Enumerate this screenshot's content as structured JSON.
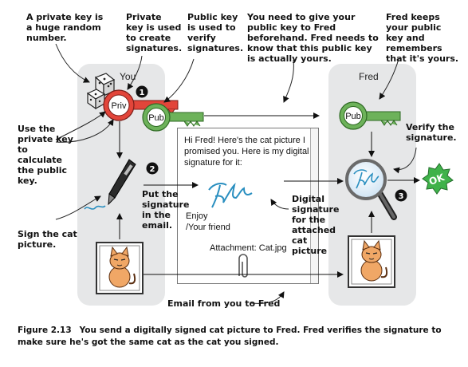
{
  "annotations": {
    "private_key_random": "A private key is a huge random number.",
    "private_key_signatures": "Private key is used to create signatures.",
    "public_key_verify": "Public key is used to verify signatures.",
    "give_public_key": "You need to give your public key to Fred beforehand. Fred needs to know that this public key is actually yours.",
    "fred_keeps_key": "Fred keeps your public key and remembers that it's yours.",
    "use_private_key": "Use the private key to calculate the public key.",
    "verify_signature": "Verify the signature.",
    "put_signature": "Put the signature in the email.",
    "digital_signature": "Digital signature for the attached cat picture",
    "sign_cat_picture": "Sign the cat picture.",
    "email_from_you": "Email from you to Fred"
  },
  "panels": {
    "you": "You",
    "fred": "Fred"
  },
  "keys": {
    "priv": "Priv",
    "pub_you": "Pub",
    "pub_fred": "Pub"
  },
  "steps": {
    "step1": "1",
    "step2": "2",
    "step3": "3"
  },
  "email": {
    "body": "Hi Fred! Here's the cat picture I promised you. Here is my digital signature for it:",
    "closing": "Enjoy",
    "sign_off": "/Your friend",
    "attachment": "Attachment: Cat.jpg"
  },
  "ok_badge": "OK",
  "caption": {
    "figure": "Figure 2.13",
    "text": "You send a digitally signed cat picture to Fred. Fred verifies the signature to make sure he's got the same cat as the cat you signed."
  },
  "colors": {
    "panel": "#e6e7e8",
    "priv_key": "#e2453a",
    "pub_key": "#6db25a",
    "ok_badge": "#3fb24a",
    "signature": "#2a8fc0"
  }
}
